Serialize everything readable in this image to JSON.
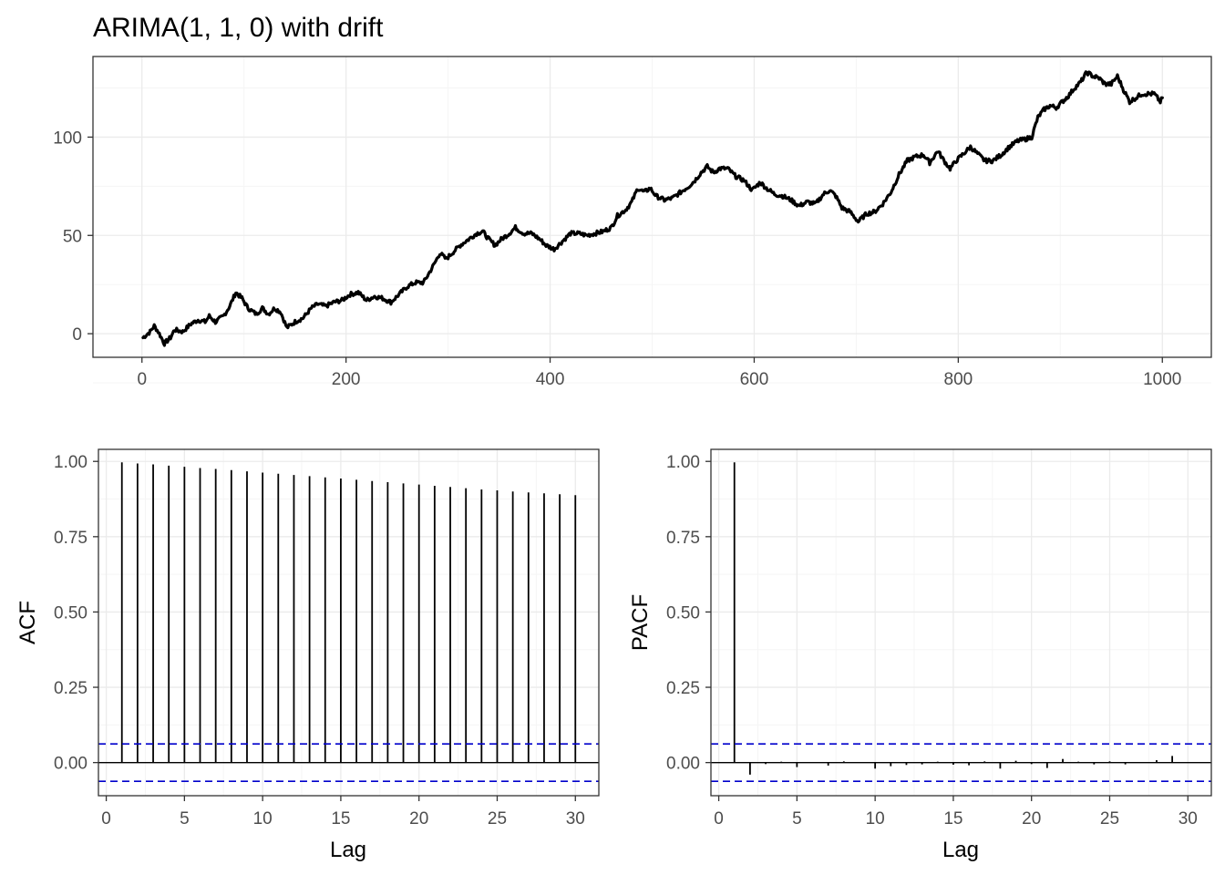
{
  "chart_data": [
    {
      "type": "line",
      "title": "ARIMA(1, 1, 0) with drift",
      "xlabel": "",
      "ylabel": "",
      "xlim": [
        -48,
        1048
      ],
      "ylim": [
        -12,
        141
      ],
      "x_ticks": [
        0,
        200,
        400,
        600,
        800,
        1000
      ],
      "y_ticks": [
        0,
        50,
        100
      ],
      "grid": true,
      "series": [
        {
          "points": [
            [
              1,
              -2
            ],
            [
              8,
              1
            ],
            [
              12,
              4
            ],
            [
              16,
              1
            ],
            [
              22,
              -5
            ],
            [
              28,
              -2
            ],
            [
              32,
              2
            ],
            [
              40,
              1
            ],
            [
              48,
              5
            ],
            [
              55,
              7
            ],
            [
              62,
              6
            ],
            [
              66,
              9
            ],
            [
              72,
              6
            ],
            [
              80,
              9
            ],
            [
              86,
              14
            ],
            [
              92,
              21
            ],
            [
              98,
              18
            ],
            [
              104,
              13
            ],
            [
              112,
              10
            ],
            [
              118,
              13
            ],
            [
              124,
              10
            ],
            [
              130,
              13
            ],
            [
              136,
              11
            ],
            [
              142,
              3
            ],
            [
              150,
              6
            ],
            [
              158,
              8
            ],
            [
              166,
              13
            ],
            [
              172,
              15
            ],
            [
              180,
              14
            ],
            [
              188,
              16
            ],
            [
              196,
              17
            ],
            [
              204,
              20
            ],
            [
              212,
              21
            ],
            [
              220,
              17
            ],
            [
              228,
              19
            ],
            [
              236,
              18
            ],
            [
              244,
              16
            ],
            [
              252,
              20
            ],
            [
              260,
              24
            ],
            [
              268,
              26
            ],
            [
              276,
              26
            ],
            [
              286,
              35
            ],
            [
              292,
              41
            ],
            [
              298,
              38
            ],
            [
              304,
              41
            ],
            [
              312,
              45
            ],
            [
              320,
              48
            ],
            [
              328,
              51
            ],
            [
              334,
              52
            ],
            [
              340,
              48
            ],
            [
              346,
              45
            ],
            [
              352,
              48
            ],
            [
              360,
              51
            ],
            [
              366,
              54
            ],
            [
              374,
              51
            ],
            [
              382,
              51
            ],
            [
              390,
              48
            ],
            [
              396,
              45
            ],
            [
              404,
              43
            ],
            [
              412,
              47
            ],
            [
              420,
              51
            ],
            [
              428,
              51
            ],
            [
              436,
              50
            ],
            [
              444,
              51
            ],
            [
              452,
              52
            ],
            [
              460,
              54
            ],
            [
              466,
              60
            ],
            [
              474,
              63
            ],
            [
              480,
              67
            ],
            [
              486,
              74
            ],
            [
              492,
              72
            ],
            [
              498,
              74
            ],
            [
              504,
              70
            ],
            [
              512,
              68
            ],
            [
              520,
              69
            ],
            [
              528,
              72
            ],
            [
              536,
              75
            ],
            [
              542,
              78
            ],
            [
              548,
              82
            ],
            [
              554,
              85
            ],
            [
              560,
              82
            ],
            [
              566,
              84
            ],
            [
              574,
              84
            ],
            [
              582,
              80
            ],
            [
              590,
              78
            ],
            [
              598,
              73
            ],
            [
              606,
              77
            ],
            [
              612,
              74
            ],
            [
              620,
              71
            ],
            [
              628,
              70
            ],
            [
              636,
              68
            ],
            [
              644,
              65
            ],
            [
              652,
              67
            ],
            [
              660,
              66
            ],
            [
              668,
              71
            ],
            [
              674,
              73
            ],
            [
              680,
              70
            ],
            [
              686,
              64
            ],
            [
              694,
              62
            ],
            [
              702,
              57
            ],
            [
              710,
              61
            ],
            [
              718,
              62
            ],
            [
              726,
              66
            ],
            [
              734,
              72
            ],
            [
              742,
              81
            ],
            [
              750,
              88
            ],
            [
              758,
              90
            ],
            [
              766,
              91
            ],
            [
              772,
              87
            ],
            [
              780,
              93
            ],
            [
              786,
              88
            ],
            [
              792,
              84
            ],
            [
              798,
              88
            ],
            [
              806,
              92
            ],
            [
              812,
              95
            ],
            [
              818,
              92
            ],
            [
              826,
              88
            ],
            [
              834,
              88
            ],
            [
              842,
              91
            ],
            [
              850,
              95
            ],
            [
              858,
              98
            ],
            [
              866,
              99
            ],
            [
              872,
              100
            ],
            [
              878,
              110
            ],
            [
              884,
              114
            ],
            [
              890,
              116
            ],
            [
              896,
              115
            ],
            [
              902,
              118
            ],
            [
              908,
              121
            ],
            [
              914,
              125
            ],
            [
              920,
              128
            ],
            [
              926,
              133
            ],
            [
              932,
              131
            ],
            [
              938,
              130
            ],
            [
              944,
              127
            ],
            [
              950,
              127
            ],
            [
              956,
              131
            ],
            [
              962,
              124
            ],
            [
              968,
              118
            ],
            [
              974,
              120
            ],
            [
              980,
              122
            ],
            [
              986,
              122
            ],
            [
              992,
              122
            ],
            [
              998,
              118
            ],
            [
              1000,
              120
            ]
          ]
        }
      ]
    },
    {
      "type": "bar",
      "xlabel": "Lag",
      "ylabel": "ACF",
      "xlim": [
        -0.5,
        31.5
      ],
      "ylim": [
        -0.11,
        1.04
      ],
      "x_ticks": [
        0,
        5,
        10,
        15,
        20,
        25,
        30
      ],
      "y_ticks": [
        0.0,
        0.25,
        0.5,
        0.75,
        1.0
      ],
      "y_tick_labels": [
        "0.00",
        "0.25",
        "0.50",
        "0.75",
        "1.00"
      ],
      "grid": true,
      "confidence_limit": 0.062,
      "lags": [
        1,
        2,
        3,
        4,
        5,
        6,
        7,
        8,
        9,
        10,
        11,
        12,
        13,
        14,
        15,
        16,
        17,
        18,
        19,
        20,
        21,
        22,
        23,
        24,
        25,
        26,
        27,
        28,
        29,
        30
      ],
      "values": [
        0.997,
        0.993,
        0.99,
        0.986,
        0.982,
        0.978,
        0.975,
        0.971,
        0.967,
        0.963,
        0.959,
        0.955,
        0.951,
        0.947,
        0.943,
        0.939,
        0.935,
        0.931,
        0.927,
        0.923,
        0.919,
        0.915,
        0.911,
        0.907,
        0.904,
        0.9,
        0.897,
        0.894,
        0.891,
        0.888
      ]
    },
    {
      "type": "bar",
      "xlabel": "Lag",
      "ylabel": "PACF",
      "xlim": [
        -0.5,
        31.5
      ],
      "ylim": [
        -0.11,
        1.04
      ],
      "x_ticks": [
        0,
        5,
        10,
        15,
        20,
        25,
        30
      ],
      "y_ticks": [
        0.0,
        0.25,
        0.5,
        0.75,
        1.0
      ],
      "y_tick_labels": [
        "0.00",
        "0.25",
        "0.50",
        "0.75",
        "1.00"
      ],
      "grid": true,
      "confidence_limit": 0.062,
      "lags": [
        1,
        2,
        3,
        4,
        5,
        6,
        7,
        8,
        9,
        10,
        11,
        12,
        13,
        14,
        15,
        16,
        17,
        18,
        19,
        20,
        21,
        22,
        23,
        24,
        25,
        26,
        27,
        28,
        29,
        30
      ],
      "values": [
        0.997,
        -0.04,
        -0.005,
        0.003,
        -0.015,
        0.002,
        -0.01,
        0.004,
        0.002,
        -0.02,
        -0.012,
        -0.008,
        -0.006,
        0.003,
        -0.007,
        -0.009,
        0.004,
        -0.02,
        0.006,
        -0.005,
        -0.018,
        0.012,
        0.003,
        -0.006,
        0.004,
        -0.006,
        0.002,
        0.008,
        0.022,
        0.002
      ]
    }
  ],
  "colors": {
    "line": "#000000",
    "bar": "#000000",
    "confidence": "#0000cc",
    "panel_border": "#333333",
    "grid_major": "#ebebeb",
    "grid_minor": "#f5f5f5",
    "tick_label": "#4d4d4d"
  }
}
